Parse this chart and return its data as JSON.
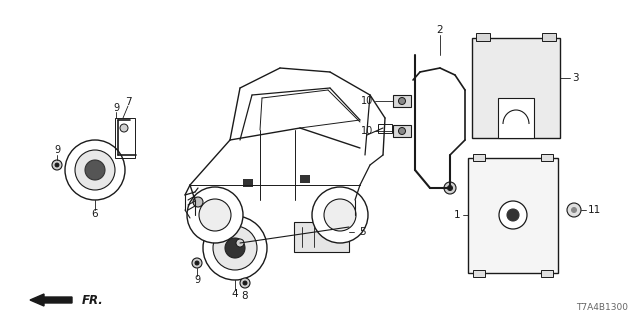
{
  "bg_color": "#ffffff",
  "fg_color": "#1a1a1a",
  "diagram_code": "T7A4B1300",
  "figsize": [
    6.4,
    3.2
  ],
  "dpi": 100,
  "xlim": [
    0,
    640
  ],
  "ylim": [
    0,
    320
  ]
}
